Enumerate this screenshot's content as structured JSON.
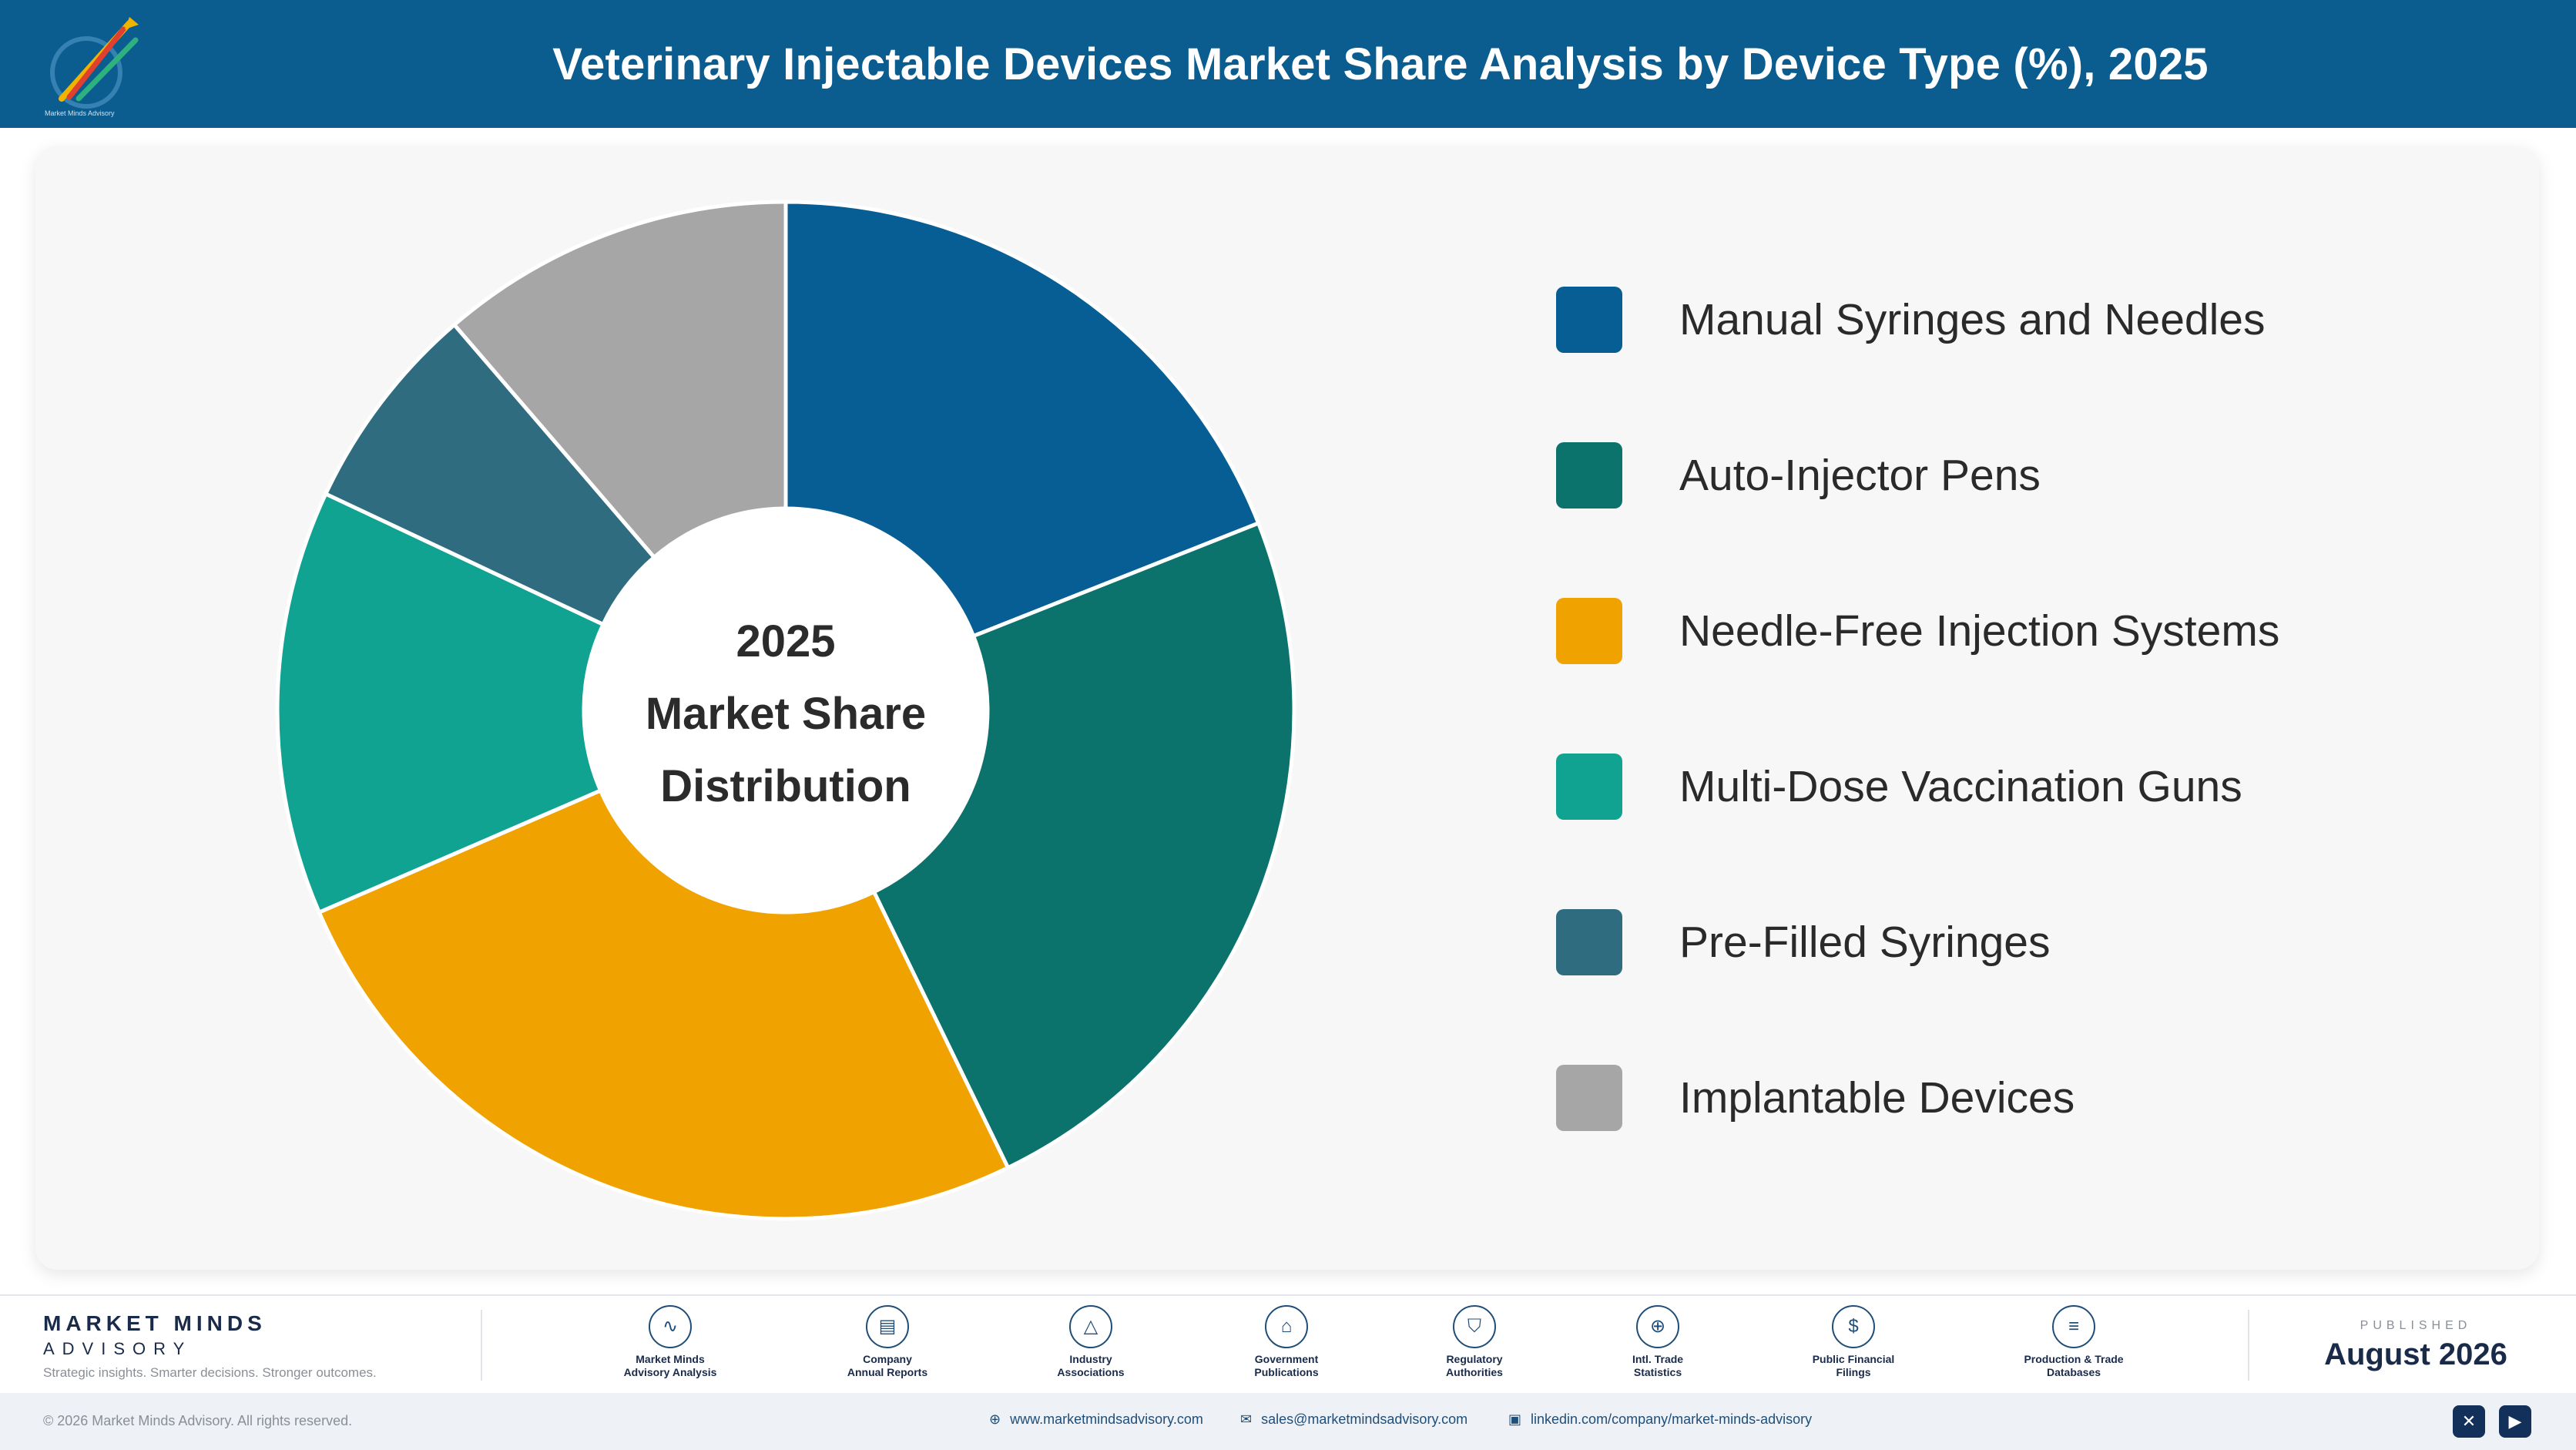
{
  "header": {
    "title": "Veterinary Injectable Devices Market Share Analysis by Device Type (%), 2025",
    "logo_caption": "Market Minds Advisory",
    "logo_icon": "rising-arrows-logo-icon"
  },
  "chart_data": {
    "type": "pie",
    "variant": "donut",
    "title": "Veterinary Injectable Devices Market Share Analysis by Device Type (%), 2025",
    "center_label": [
      "2025",
      "Market Share",
      "Distribution"
    ],
    "categories": [
      "Manual Syringes and Needles",
      "Auto-Injector Pens",
      "Needle-Free Injection Systems",
      "Multi-Dose Vaccination Guns",
      "Pre-Filled Syringes",
      "Implantable Devices"
    ],
    "values": [
      19.0,
      23.8,
      25.7,
      13.5,
      6.7,
      11.3
    ],
    "colors": [
      "#075e94",
      "#0b726c",
      "#f0a300",
      "#11a391",
      "#2f6c80",
      "#a6a6a6"
    ],
    "legend_position": "right"
  },
  "footer": {
    "brand_name": "MARKET MINDS",
    "brand_sub": "ADVISORY",
    "tagline": "Strategic insights. Smarter decisions. Stronger outcomes.",
    "sources": [
      {
        "icon": "trend-chart-icon",
        "glyph": "∿",
        "label_line1": "Market Minds",
        "label_line2": "Advisory Analysis"
      },
      {
        "icon": "document-icon",
        "glyph": "▤",
        "label_line1": "Company",
        "label_line2": "Annual Reports"
      },
      {
        "icon": "network-icon",
        "glyph": "△",
        "label_line1": "Industry",
        "label_line2": "Associations"
      },
      {
        "icon": "government-building-icon",
        "glyph": "⌂",
        "label_line1": "Government",
        "label_line2": "Publications"
      },
      {
        "icon": "shield-check-icon",
        "glyph": "⛉",
        "label_line1": "Regulatory",
        "label_line2": "Authorities"
      },
      {
        "icon": "globe-icon",
        "glyph": "⊕",
        "label_line1": "Intl. Trade",
        "label_line2": "Statistics"
      },
      {
        "icon": "dollar-coin-icon",
        "glyph": "$",
        "label_line1": "Public Financial",
        "label_line2": "Filings"
      },
      {
        "icon": "database-icon",
        "glyph": "≡",
        "label_line1": "Production & Trade",
        "label_line2": "Databases"
      }
    ],
    "published_label": "PUBLISHED",
    "published_date": "August 2026",
    "copyright": "© 2026 Market Minds Advisory. All rights reserved.",
    "website": "www.marketmindsadvisory.com",
    "email": "sales@marketmindsadvisory.com",
    "linkedin": "linkedin.com/company/market-minds-advisory",
    "social": [
      {
        "icon": "x-social-icon",
        "glyph": "✕"
      },
      {
        "icon": "youtube-icon",
        "glyph": "▶"
      }
    ]
  }
}
